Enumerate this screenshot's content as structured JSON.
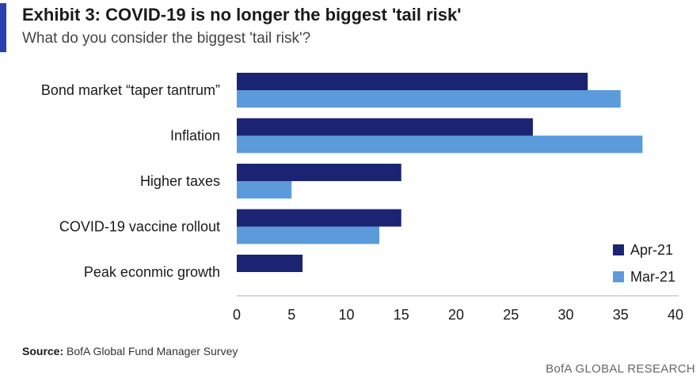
{
  "header": {
    "title": "Exhibit 3: COVID-19 is no longer the biggest 'tail risk'",
    "subtitle": "What do you consider the biggest 'tail risk'?"
  },
  "footer": {
    "source_label": "Source:",
    "source_text": "BofA Global Fund Manager Survey",
    "brand": "BofA GLOBAL RESEARCH"
  },
  "colors": {
    "accent": "#2a3fb0",
    "apr": "#1b2472",
    "mar": "#5b9bdc"
  },
  "chart_data": {
    "type": "bar",
    "orientation": "horizontal",
    "title": "Exhibit 3: COVID-19 is no longer the biggest 'tail risk'",
    "subtitle": "What do you consider the biggest 'tail risk'?",
    "xlabel": "",
    "ylabel": "",
    "xlim": [
      0,
      40
    ],
    "xticks": [
      0,
      5,
      10,
      15,
      20,
      25,
      30,
      35,
      40
    ],
    "grid": false,
    "legend_position": "bottom-right",
    "categories": [
      "Bond market “taper tantrum”",
      "Inflation",
      "Higher taxes",
      "COVID-19 vaccine rollout",
      "Peak econmic growth"
    ],
    "series": [
      {
        "name": "Apr-21",
        "values": [
          32,
          27,
          15,
          15,
          6
        ]
      },
      {
        "name": "Mar-21",
        "values": [
          35,
          37,
          5,
          13,
          0
        ]
      }
    ]
  }
}
